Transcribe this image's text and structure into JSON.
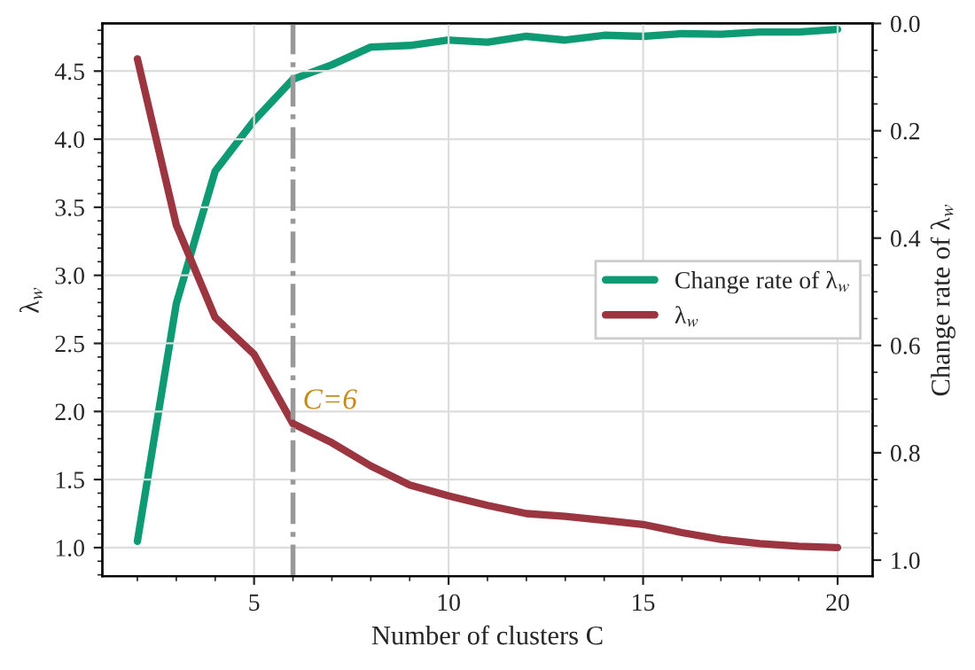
{
  "chart_data": {
    "type": "line",
    "xlabel": "Number of clusters C",
    "ylabel": "λ$_{w}$",
    "y2label": "Change rate of λ$_{w}$",
    "x": [
      2,
      3,
      4,
      5,
      6,
      7,
      8,
      9,
      10,
      11,
      12,
      13,
      14,
      15,
      16,
      17,
      18,
      19,
      20
    ],
    "series": [
      {
        "name": "Change rate of λ$_{w}$",
        "color": "#0e9a72",
        "axis": "y2",
        "values": [
          0.965,
          0.522,
          0.275,
          0.181,
          0.104,
          0.077,
          0.044,
          0.041,
          0.031,
          0.035,
          0.024,
          0.031,
          0.022,
          0.024,
          0.019,
          0.02,
          0.016,
          0.016,
          0.011
        ]
      },
      {
        "name": "λ$_{w}$",
        "color": "#9b3540",
        "values": [
          4.59,
          3.37,
          2.69,
          2.42,
          1.91,
          1.77,
          1.6,
          1.46,
          1.38,
          1.31,
          1.25,
          1.23,
          1.2,
          1.17,
          1.11,
          1.06,
          1.03,
          1.01,
          1.0
        ]
      }
    ],
    "xlim": [
      1.1,
      20.9
    ],
    "xticks": [
      5,
      10,
      15,
      20
    ],
    "ylim": [
      0.79,
      4.85
    ],
    "yticks": [
      {
        "value": 1,
        "label": "1.0"
      },
      1.5,
      {
        "value": 2,
        "label": "2.0"
      },
      2.5,
      {
        "value": 3,
        "label": "3.0"
      },
      3.5,
      {
        "value": 4,
        "label": "4.0"
      },
      4.5
    ],
    "y2lim": [
      1.03,
      0.0
    ],
    "y2ticks": [
      {
        "value": 0,
        "label": "0.0"
      },
      0.2,
      0.4,
      0.6,
      0.8,
      {
        "value": 1,
        "label": "1.0"
      }
    ],
    "ref_lines": [
      {
        "axis": "x",
        "value": 6,
        "label": "C=6",
        "color": "#999999",
        "line_style": "dashdot"
      }
    ],
    "grid": true,
    "legend": "right",
    "line_style": "solid",
    "marker": "none"
  }
}
